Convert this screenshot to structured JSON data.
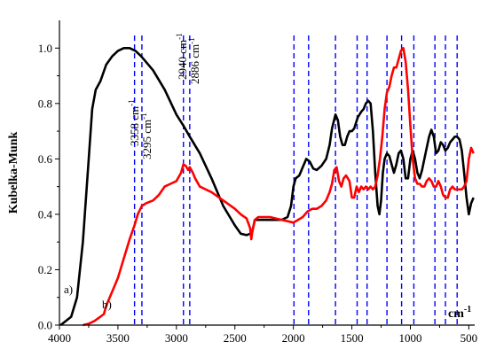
{
  "chart_data": {
    "type": "line",
    "ylabel": "Kubelka-Munk",
    "xlabel_unit": "cm-1",
    "xlim": [
      4000,
      450
    ],
    "ylim": [
      0.0,
      1.1
    ],
    "x_ticks": [
      4000,
      3500,
      3000,
      2500,
      2000,
      1500,
      1000,
      500
    ],
    "y_ticks": [
      0.0,
      0.2,
      0.4,
      0.6,
      0.8,
      1.0
    ],
    "series": [
      {
        "name": "a)",
        "color": "#000000",
        "points": [
          [
            3990,
            0.0
          ],
          [
            3900,
            0.03
          ],
          [
            3850,
            0.1
          ],
          [
            3800,
            0.3
          ],
          [
            3750,
            0.6
          ],
          [
            3720,
            0.78
          ],
          [
            3690,
            0.85
          ],
          [
            3650,
            0.88
          ],
          [
            3600,
            0.94
          ],
          [
            3550,
            0.97
          ],
          [
            3500,
            0.99
          ],
          [
            3450,
            1.0
          ],
          [
            3400,
            1.0
          ],
          [
            3350,
            0.99
          ],
          [
            3300,
            0.97
          ],
          [
            3200,
            0.92
          ],
          [
            3100,
            0.85
          ],
          [
            3000,
            0.76
          ],
          [
            2940,
            0.72
          ],
          [
            2886,
            0.68
          ],
          [
            2800,
            0.62
          ],
          [
            2700,
            0.53
          ],
          [
            2600,
            0.43
          ],
          [
            2500,
            0.36
          ],
          [
            2450,
            0.33
          ],
          [
            2400,
            0.325
          ],
          [
            2370,
            0.33
          ],
          [
            2350,
            0.34
          ],
          [
            2330,
            0.38
          ],
          [
            2300,
            0.38
          ],
          [
            2200,
            0.38
          ],
          [
            2100,
            0.38
          ],
          [
            2050,
            0.39
          ],
          [
            2020,
            0.43
          ],
          [
            2000,
            0.5
          ],
          [
            1980,
            0.53
          ],
          [
            1950,
            0.54
          ],
          [
            1920,
            0.57
          ],
          [
            1890,
            0.6
          ],
          [
            1860,
            0.59
          ],
          [
            1830,
            0.565
          ],
          [
            1800,
            0.56
          ],
          [
            1760,
            0.575
          ],
          [
            1720,
            0.6
          ],
          [
            1690,
            0.65
          ],
          [
            1670,
            0.71
          ],
          [
            1640,
            0.76
          ],
          [
            1620,
            0.74
          ],
          [
            1600,
            0.68
          ],
          [
            1580,
            0.65
          ],
          [
            1560,
            0.65
          ],
          [
            1540,
            0.68
          ],
          [
            1520,
            0.7
          ],
          [
            1500,
            0.7
          ],
          [
            1480,
            0.71
          ],
          [
            1450,
            0.75
          ],
          [
            1420,
            0.77
          ],
          [
            1400,
            0.78
          ],
          [
            1380,
            0.8
          ],
          [
            1360,
            0.81
          ],
          [
            1340,
            0.8
          ],
          [
            1320,
            0.7
          ],
          [
            1300,
            0.55
          ],
          [
            1280,
            0.43
          ],
          [
            1265,
            0.4
          ],
          [
            1250,
            0.45
          ],
          [
            1235,
            0.55
          ],
          [
            1220,
            0.6
          ],
          [
            1200,
            0.62
          ],
          [
            1180,
            0.61
          ],
          [
            1160,
            0.58
          ],
          [
            1140,
            0.55
          ],
          [
            1120,
            0.58
          ],
          [
            1100,
            0.62
          ],
          [
            1080,
            0.63
          ],
          [
            1060,
            0.6
          ],
          [
            1040,
            0.53
          ],
          [
            1020,
            0.53
          ],
          [
            1000,
            0.6
          ],
          [
            980,
            0.63
          ],
          [
            960,
            0.6
          ],
          [
            940,
            0.55
          ],
          [
            920,
            0.53
          ],
          [
            900,
            0.56
          ],
          [
            870,
            0.62
          ],
          [
            840,
            0.68
          ],
          [
            820,
            0.705
          ],
          [
            800,
            0.68
          ],
          [
            780,
            0.62
          ],
          [
            760,
            0.63
          ],
          [
            740,
            0.66
          ],
          [
            720,
            0.65
          ],
          [
            700,
            0.63
          ],
          [
            680,
            0.64
          ],
          [
            660,
            0.66
          ],
          [
            640,
            0.67
          ],
          [
            620,
            0.68
          ],
          [
            600,
            0.68
          ],
          [
            580,
            0.67
          ],
          [
            560,
            0.63
          ],
          [
            540,
            0.55
          ],
          [
            520,
            0.46
          ],
          [
            500,
            0.4
          ],
          [
            480,
            0.44
          ],
          [
            460,
            0.46
          ]
        ]
      },
      {
        "name": "b)",
        "color": "#ff0000",
        "points": [
          [
            3800,
            0.0
          ],
          [
            3750,
            0.005
          ],
          [
            3700,
            0.015
          ],
          [
            3650,
            0.03
          ],
          [
            3620,
            0.04
          ],
          [
            3600,
            0.07
          ],
          [
            3560,
            0.11
          ],
          [
            3500,
            0.17
          ],
          [
            3450,
            0.24
          ],
          [
            3400,
            0.31
          ],
          [
            3358,
            0.36
          ],
          [
            3330,
            0.4
          ],
          [
            3295,
            0.43
          ],
          [
            3260,
            0.44
          ],
          [
            3200,
            0.45
          ],
          [
            3150,
            0.47
          ],
          [
            3100,
            0.5
          ],
          [
            3050,
            0.51
          ],
          [
            3000,
            0.52
          ],
          [
            2960,
            0.55
          ],
          [
            2940,
            0.58
          ],
          [
            2920,
            0.575
          ],
          [
            2900,
            0.56
          ],
          [
            2886,
            0.57
          ],
          [
            2860,
            0.55
          ],
          [
            2840,
            0.53
          ],
          [
            2800,
            0.5
          ],
          [
            2750,
            0.49
          ],
          [
            2700,
            0.48
          ],
          [
            2600,
            0.45
          ],
          [
            2500,
            0.42
          ],
          [
            2450,
            0.4
          ],
          [
            2400,
            0.385
          ],
          [
            2370,
            0.35
          ],
          [
            2360,
            0.31
          ],
          [
            2350,
            0.34
          ],
          [
            2330,
            0.38
          ],
          [
            2300,
            0.39
          ],
          [
            2250,
            0.39
          ],
          [
            2200,
            0.39
          ],
          [
            2150,
            0.385
          ],
          [
            2100,
            0.38
          ],
          [
            2050,
            0.375
          ],
          [
            2000,
            0.37
          ],
          [
            1960,
            0.38
          ],
          [
            1920,
            0.39
          ],
          [
            1880,
            0.41
          ],
          [
            1840,
            0.42
          ],
          [
            1800,
            0.42
          ],
          [
            1760,
            0.43
          ],
          [
            1720,
            0.45
          ],
          [
            1690,
            0.48
          ],
          [
            1670,
            0.51
          ],
          [
            1650,
            0.56
          ],
          [
            1630,
            0.57
          ],
          [
            1610,
            0.52
          ],
          [
            1590,
            0.5
          ],
          [
            1570,
            0.53
          ],
          [
            1550,
            0.54
          ],
          [
            1520,
            0.52
          ],
          [
            1500,
            0.46
          ],
          [
            1480,
            0.46
          ],
          [
            1460,
            0.5
          ],
          [
            1440,
            0.48
          ],
          [
            1420,
            0.5
          ],
          [
            1400,
            0.49
          ],
          [
            1380,
            0.5
          ],
          [
            1360,
            0.49
          ],
          [
            1340,
            0.5
          ],
          [
            1320,
            0.49
          ],
          [
            1300,
            0.5
          ],
          [
            1280,
            0.54
          ],
          [
            1260,
            0.6
          ],
          [
            1240,
            0.68
          ],
          [
            1220,
            0.78
          ],
          [
            1200,
            0.84
          ],
          [
            1180,
            0.86
          ],
          [
            1160,
            0.9
          ],
          [
            1140,
            0.93
          ],
          [
            1120,
            0.93
          ],
          [
            1100,
            0.96
          ],
          [
            1080,
            0.99
          ],
          [
            1060,
            1.0
          ],
          [
            1040,
            0.95
          ],
          [
            1020,
            0.85
          ],
          [
            1000,
            0.72
          ],
          [
            980,
            0.6
          ],
          [
            960,
            0.53
          ],
          [
            940,
            0.51
          ],
          [
            920,
            0.51
          ],
          [
            900,
            0.5
          ],
          [
            880,
            0.5
          ],
          [
            860,
            0.52
          ],
          [
            840,
            0.53
          ],
          [
            820,
            0.52
          ],
          [
            800,
            0.5
          ],
          [
            780,
            0.5
          ],
          [
            760,
            0.52
          ],
          [
            740,
            0.5
          ],
          [
            720,
            0.47
          ],
          [
            700,
            0.46
          ],
          [
            680,
            0.46
          ],
          [
            660,
            0.49
          ],
          [
            640,
            0.5
          ],
          [
            620,
            0.49
          ],
          [
            600,
            0.49
          ],
          [
            580,
            0.49
          ],
          [
            560,
            0.49
          ],
          [
            540,
            0.5
          ],
          [
            520,
            0.52
          ],
          [
            500,
            0.6
          ],
          [
            480,
            0.64
          ],
          [
            460,
            0.62
          ]
        ]
      }
    ],
    "reference_lines_x": [
      3358,
      3295,
      2940,
      2886,
      1995,
      1870,
      1640,
      1455,
      1370,
      1200,
      1075,
      970,
      790,
      700,
      600
    ],
    "reference_line_color": "#0000ff",
    "annotations": [
      {
        "text": "3358 cm",
        "sup": "-1",
        "x": 3358
      },
      {
        "text": "3295 cm",
        "sup": "-1",
        "x": 3295
      },
      {
        "text": "2940 cm",
        "sup": "-1",
        "x": 2940
      },
      {
        "text": "2886 cm",
        "sup": "-1",
        "x": 2886
      }
    ],
    "series_labels": [
      {
        "text": "a)",
        "series": 0
      },
      {
        "text": "b)",
        "series": 1
      }
    ]
  }
}
